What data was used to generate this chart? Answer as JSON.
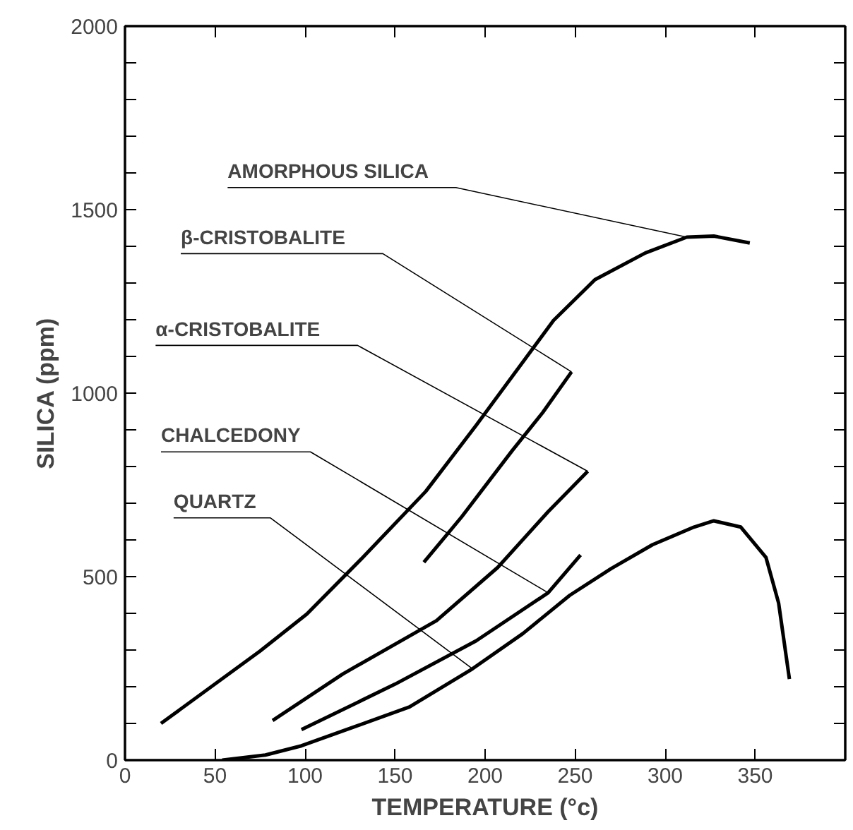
{
  "chart_data": {
    "type": "line",
    "xlabel": "TEMPERATURE (°c)",
    "ylabel": "SILICA (ppm)",
    "xlim": [
      0,
      400
    ],
    "ylim": [
      0,
      2000
    ],
    "xticks": [
      0,
      50,
      100,
      150,
      200,
      250,
      300,
      350
    ],
    "yticks": [
      0,
      {
        "value": 100,
        "label": null
      },
      {
        "value": 200,
        "label": null
      },
      {
        "value": 300,
        "label": null
      },
      {
        "value": 400,
        "label": null
      },
      500,
      {
        "value": 600,
        "label": null
      },
      {
        "value": 700,
        "label": null
      },
      {
        "value": 800,
        "label": null
      },
      {
        "value": 900,
        "label": null
      },
      1000,
      {
        "value": 1100,
        "label": null
      },
      {
        "value": 1200,
        "label": null
      },
      {
        "value": 1300,
        "label": null
      },
      {
        "value": 1400,
        "label": null
      },
      1500,
      {
        "value": 1600,
        "label": null
      },
      {
        "value": 1700,
        "label": null
      },
      {
        "value": 1800,
        "label": null
      },
      {
        "value": 1900,
        "label": null
      },
      2000
    ],
    "grid": false,
    "marker": "none",
    "line_style": "solid",
    "series": [
      {
        "name": "AMORPHOUS SILICA",
        "color": "#000000",
        "x": [
          20,
          75,
          101,
          132,
          167,
          195,
          238,
          261,
          289,
          312,
          327,
          347
        ],
        "values": [
          100,
          297,
          398,
          552,
          732,
          912,
          1198,
          1309,
          1382,
          1425,
          1428,
          1409
        ]
      },
      {
        "name": "β-CRISTOBALITE",
        "color": "#000000",
        "x": [
          166,
          187,
          215,
          232,
          248
        ],
        "values": [
          539,
          663,
          843,
          947,
          1058
        ]
      },
      {
        "name": "α-CRISTOBALITE",
        "color": "#000000",
        "x": [
          82,
          121,
          173,
          207,
          235,
          257
        ],
        "values": [
          108,
          235,
          380,
          525,
          677,
          787
        ]
      },
      {
        "name": "CHALCEDONY",
        "color": "#000000",
        "x": [
          98,
          150,
          195,
          235,
          253
        ],
        "values": [
          83,
          207,
          325,
          456,
          559
        ]
      },
      {
        "name": "QUARTZ",
        "color": "#000000",
        "x": [
          54,
          78,
          98,
          127,
          158,
          193,
          221,
          247,
          270,
          293,
          316,
          327,
          342,
          356,
          363,
          369
        ],
        "values": [
          0,
          14,
          39,
          90,
          145,
          249,
          345,
          449,
          522,
          587,
          635,
          652,
          635,
          552,
          428,
          221
        ]
      }
    ]
  }
}
